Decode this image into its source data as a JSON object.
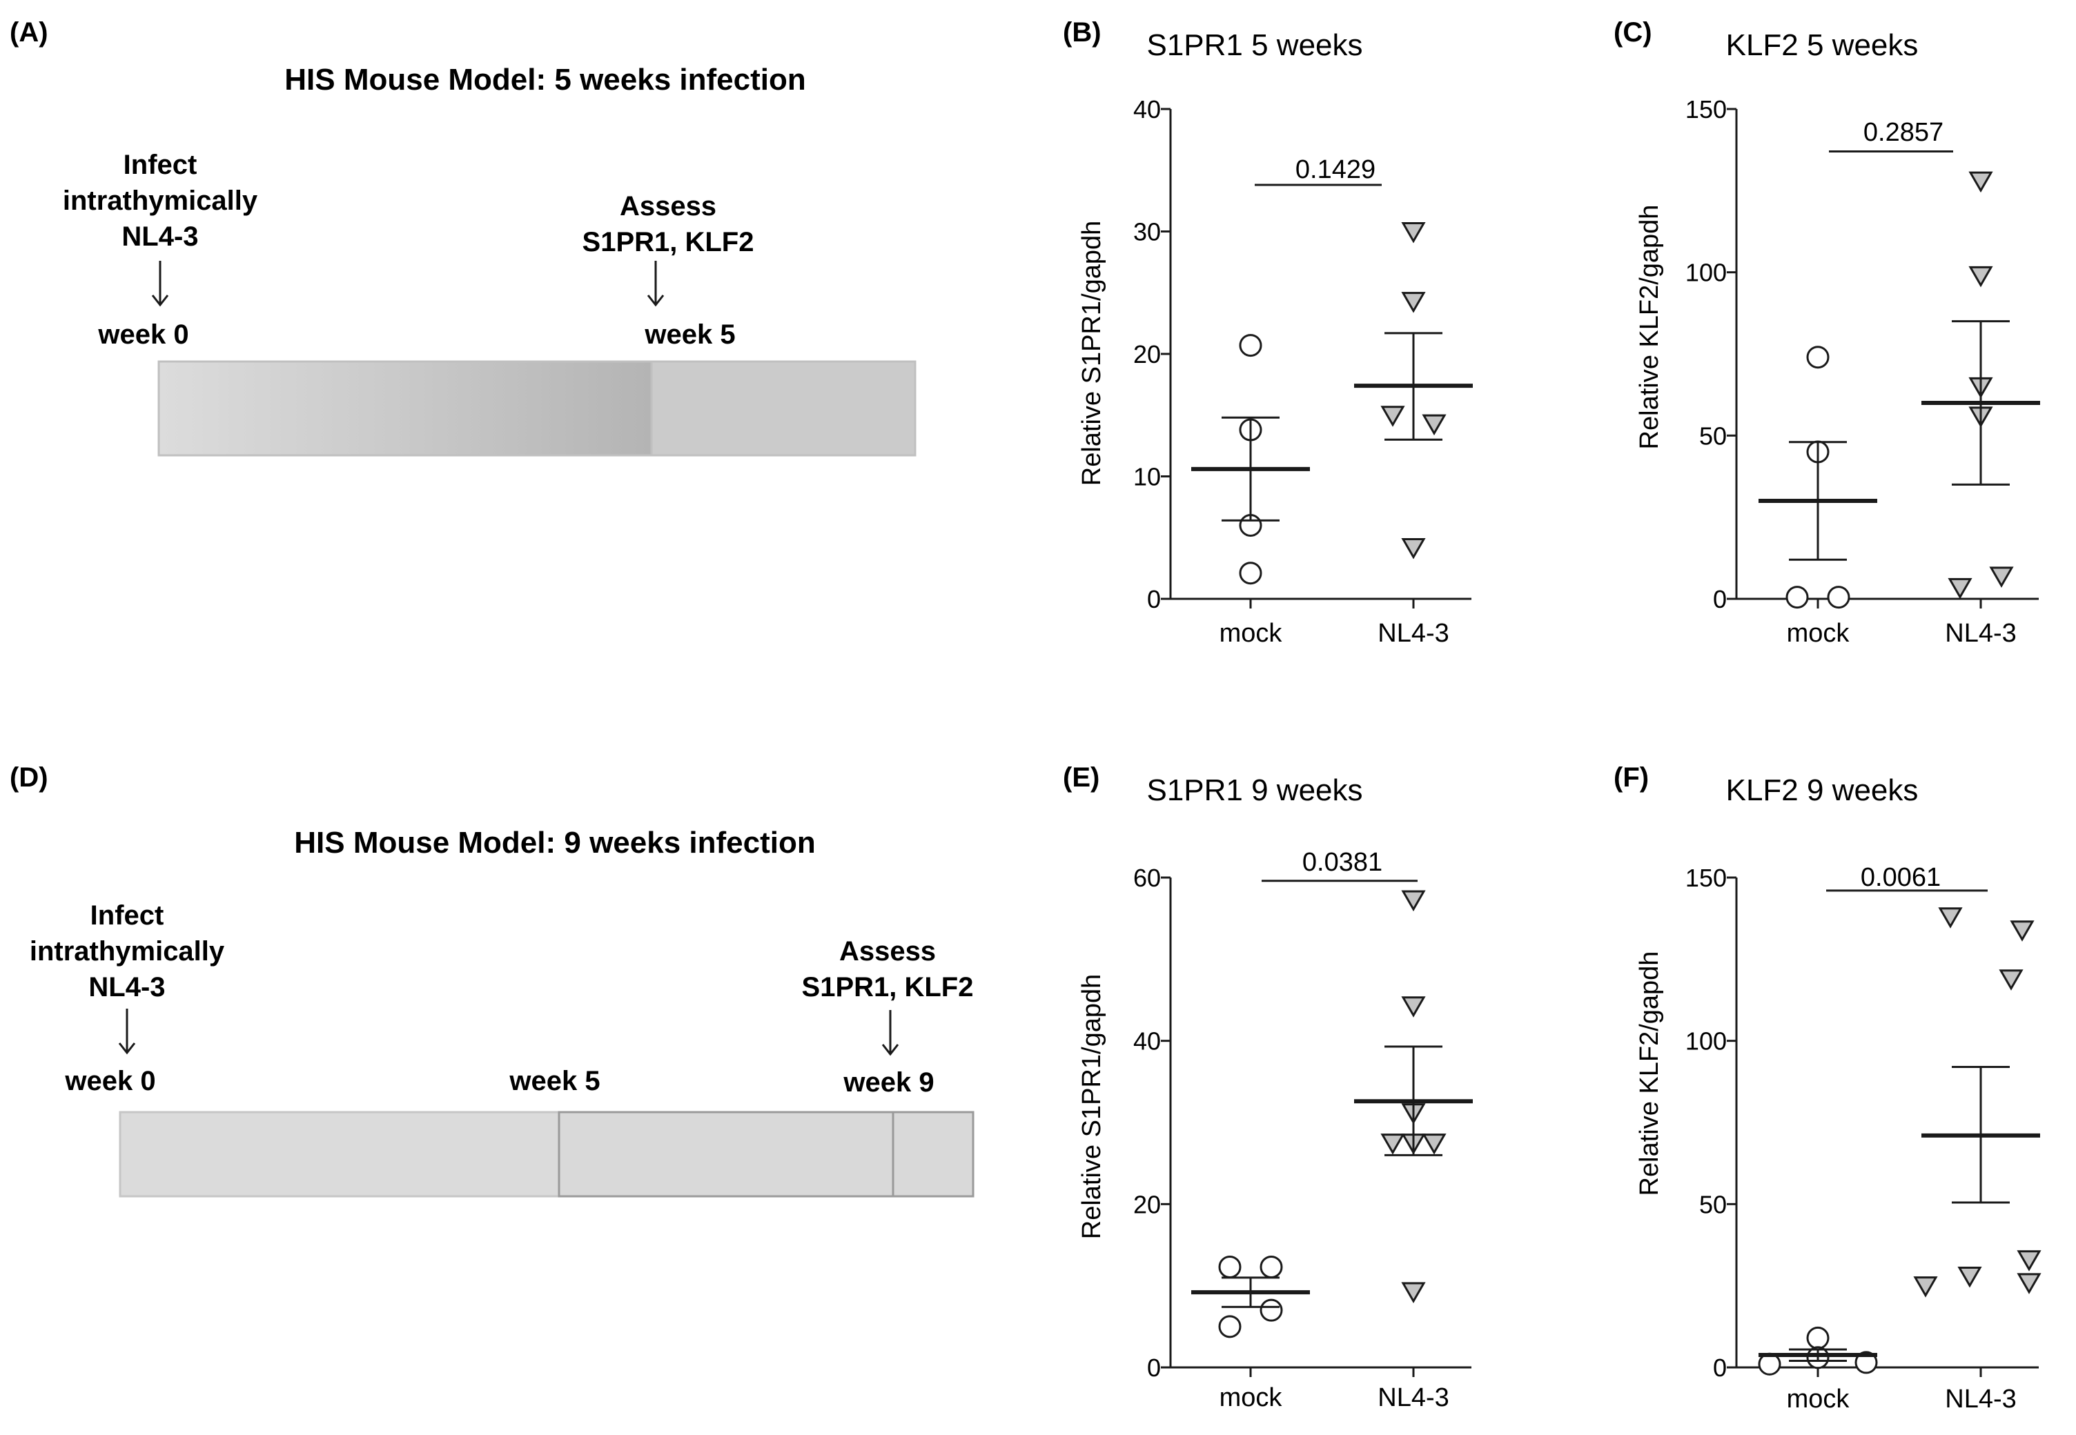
{
  "timeline_panels": [
    {
      "label": "(A)",
      "title": "HIS Mouse Model: 5 weeks infection",
      "infect": [
        "Infect",
        "intrathymically",
        "NL4-3"
      ],
      "assess": [
        "Assess",
        "S1PR1, KLF2"
      ],
      "start_label": "week 0",
      "assess_label": "week 5"
    },
    {
      "label": "(D)",
      "title": "HIS Mouse Model: 9 weeks infection",
      "infect": [
        "Infect",
        "intrathymically",
        "NL4-3"
      ],
      "assess": [
        "Assess",
        "S1PR1, KLF2"
      ],
      "start_label": "week 0",
      "mid_label": "week 5",
      "assess_label": "week 9"
    }
  ],
  "chart_data": [
    {
      "id": "B",
      "panel_label": "(B)",
      "type": "scatter",
      "title": "S1PR1 5 weeks",
      "ylabel": "Relative S1PR1/gapdh",
      "xlabel": "",
      "categories": [
        "mock",
        "NL4-3"
      ],
      "ylim": [
        0,
        40
      ],
      "yticks": [
        0,
        10,
        20,
        30,
        40
      ],
      "series": [
        {
          "name": "mock",
          "marker": "circle",
          "values": [
            20.7,
            13.8,
            6.0,
            2.1
          ],
          "mean": 10.6,
          "sem": [
            6.4,
            14.8
          ]
        },
        {
          "name": "NL4-3",
          "marker": "triangle",
          "values": [
            30.0,
            24.3,
            15.0,
            14.3,
            4.2
          ],
          "mean": 17.4,
          "sem": [
            13.0,
            21.7
          ]
        }
      ],
      "p_value": "0.1429",
      "p_y": 33.8
    },
    {
      "id": "C",
      "panel_label": "(C)",
      "type": "scatter",
      "title": "KLF2 5 weeks",
      "ylabel": "Relative KLF2/gapdh",
      "xlabel": "",
      "categories": [
        "mock",
        "NL4-3"
      ],
      "ylim": [
        0,
        150
      ],
      "yticks": [
        0,
        50,
        100,
        150
      ],
      "series": [
        {
          "name": "mock",
          "marker": "circle",
          "values": [
            74,
            45,
            0.5,
            0.5
          ],
          "mean": 30,
          "sem": [
            12,
            48
          ]
        },
        {
          "name": "NL4-3",
          "marker": "triangle",
          "values": [
            128,
            99,
            65,
            56,
            7,
            3.5
          ],
          "mean": 60,
          "sem": [
            35,
            85
          ]
        }
      ],
      "p_value": "0.2857",
      "p_y": 137
    },
    {
      "id": "E",
      "panel_label": "(E)",
      "type": "scatter",
      "title": "S1PR1 9 weeks",
      "ylabel": "Relative S1PR1/gapdh",
      "xlabel": "",
      "categories": [
        "mock",
        "NL4-3"
      ],
      "ylim": [
        0,
        60
      ],
      "yticks": [
        0,
        20,
        40,
        60
      ],
      "series": [
        {
          "name": "mock",
          "marker": "circle",
          "values": [
            12.3,
            12.3,
            7.0,
            5.0
          ],
          "mean": 9.2,
          "sem": [
            7.4,
            11.0
          ]
        },
        {
          "name": "NL4-3",
          "marker": "triangle",
          "values": [
            57.3,
            44.3,
            31.2,
            27.5,
            27.5,
            27.5,
            9.3
          ],
          "mean": 32.6,
          "sem": [
            26.0,
            39.3
          ]
        }
      ],
      "p_value": "0.0381",
      "p_y": 59.6
    },
    {
      "id": "F",
      "panel_label": "(F)",
      "type": "scatter",
      "title": "KLF2 9 weeks",
      "ylabel": "Relative KLF2/gapdh",
      "xlabel": "",
      "categories": [
        "mock",
        "NL4-3"
      ],
      "ylim": [
        0,
        150
      ],
      "yticks": [
        0,
        50,
        100,
        150
      ],
      "series": [
        {
          "name": "mock",
          "marker": "circle",
          "values": [
            9,
            3,
            1,
            1.5
          ],
          "mean": 3.8,
          "sem": [
            2,
            5.5
          ]
        },
        {
          "name": "NL4-3",
          "marker": "triangle",
          "values": [
            138,
            134,
            119,
            33,
            28,
            26,
            25
          ],
          "mean": 71,
          "sem": [
            50.5,
            92
          ]
        },
        {
          "name": "NL4-3",
          "marker": "triangle",
          "values": [],
          "mean": null,
          "sem": null
        }
      ],
      "p_value": "0.0061",
      "p_y": 146
    }
  ],
  "colors": {
    "axis": "#1a1a1a",
    "marker_fill_nl43": "#c4c4c4",
    "bar_fill": "#d3d3d3",
    "bar_dark": "#b5b5b5",
    "bar_stroke": "#9a9a9a"
  }
}
